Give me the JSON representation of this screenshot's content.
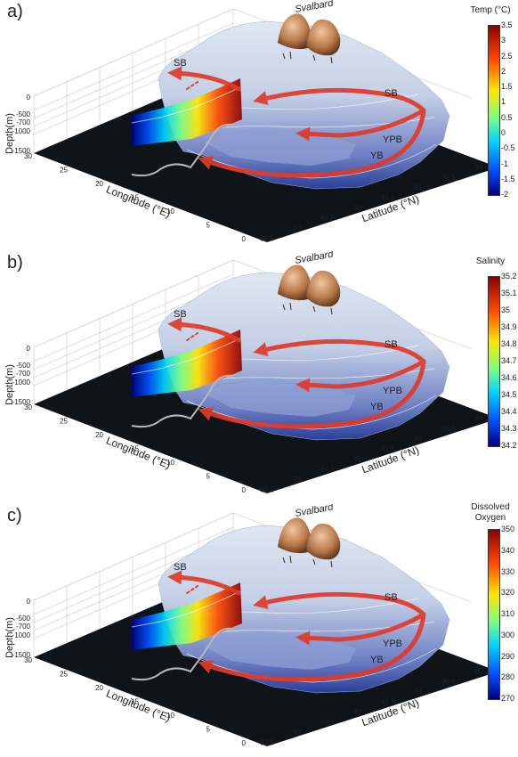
{
  "chart_data": [
    {
      "type": "heatmap",
      "panel_label": "a)",
      "colorbar": {
        "title": "Temp (°C)",
        "ticks": [
          "3.5",
          "3",
          "2.5",
          "2",
          "1.5",
          "1",
          "0.5",
          "0",
          "-0.5",
          "-1",
          "-1.5",
          "-2"
        ],
        "range": [
          -2,
          3.5
        ],
        "colormap": "jet"
      },
      "axes": {
        "depth_label": "Depth(m)",
        "depth_ticks": [
          "0",
          "-500",
          "-700",
          "-1000",
          "-1500"
        ],
        "longitude_label": "Longitude (°E)",
        "longitude_ticks": [
          "30",
          "25",
          "20",
          "15",
          "10",
          "5",
          "0"
        ],
        "latitude_label": "Latitude (°N)",
        "latitude_ticks": [
          "80",
          "80.5",
          "81",
          "81.5",
          "82",
          "82.5",
          "83",
          "83.5"
        ]
      },
      "annotations": [
        "Svalbard",
        "SB",
        "SB",
        "YPB",
        "YB"
      ]
    },
    {
      "type": "heatmap",
      "panel_label": "b)",
      "colorbar": {
        "title": "Salinity",
        "ticks": [
          "35.2",
          "35.1",
          "35",
          "34.9",
          "34.8",
          "34.7",
          "34.6",
          "34.5",
          "34.4",
          "34.3",
          "34.2"
        ],
        "range": [
          34.2,
          35.2
        ],
        "colormap": "jet"
      },
      "axes": {
        "depth_label": "Depth(m)",
        "depth_ticks": [
          "0",
          "-500",
          "-700",
          "-1000",
          "-1500"
        ],
        "longitude_label": "Longitude (°E)",
        "longitude_ticks": [
          "30",
          "25",
          "20",
          "15",
          "10",
          "5",
          "0"
        ],
        "latitude_label": "Latitude (°N)",
        "latitude_ticks": [
          "80",
          "80.5",
          "81",
          "81.5",
          "82",
          "82.5",
          "83",
          "83.5"
        ]
      },
      "annotations": [
        "Svalbard",
        "SB",
        "SB",
        "YPB",
        "YB"
      ]
    },
    {
      "type": "heatmap",
      "panel_label": "c)",
      "colorbar": {
        "title": "Dissolved Oxygen",
        "ticks": [
          "350",
          "340",
          "330",
          "320",
          "310",
          "300",
          "290",
          "280",
          "270"
        ],
        "range": [
          270,
          350
        ],
        "colormap": "jet"
      },
      "axes": {
        "depth_label": "Depth(m)",
        "depth_ticks": [
          "0",
          "-500",
          "-700",
          "-1000",
          "-1500"
        ],
        "longitude_label": "Longitude (°E)",
        "longitude_ticks": [
          "30",
          "25",
          "20",
          "15",
          "10",
          "5",
          "0"
        ],
        "latitude_label": "Latitude (°N)",
        "latitude_ticks": [
          "80",
          "80.5",
          "81",
          "81.5",
          "82",
          "82.5",
          "83",
          "83.5"
        ]
      },
      "annotations": [
        "Svalbard",
        "SB",
        "SB",
        "YPB",
        "YB"
      ]
    }
  ],
  "colors": {
    "current_arrows": "#e03a2a",
    "seafloor": "#0e1418",
    "ice_top": "#dfe7f2",
    "slope_deep": "#2a3f9a",
    "land": "#b8794a"
  }
}
